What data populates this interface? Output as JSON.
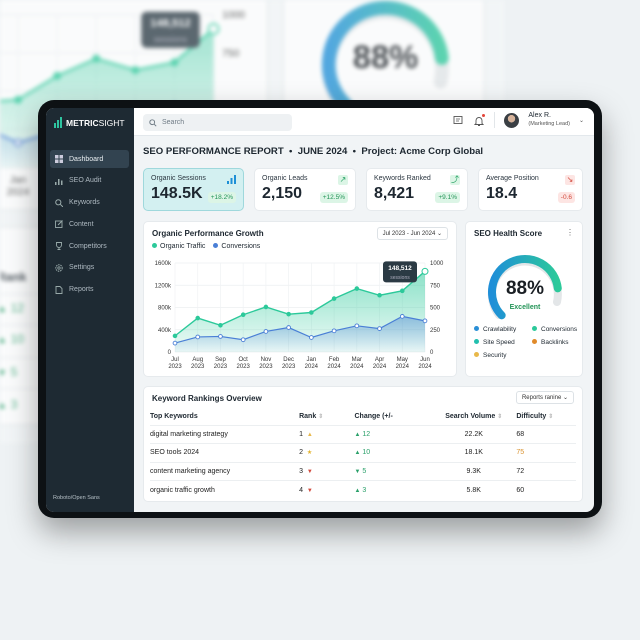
{
  "app": {
    "logo_bold": "METRIC",
    "logo_light": "SIGHT",
    "font_note": "Roboto/Open Sans"
  },
  "sidebar": {
    "items": [
      {
        "label": "Dashboard",
        "icon": "grid-icon",
        "active": true
      },
      {
        "label": "SEO Audit",
        "icon": "bar-chart-icon"
      },
      {
        "label": "Keywords",
        "icon": "search-icon"
      },
      {
        "label": "Content",
        "icon": "edit-icon"
      },
      {
        "label": "Competitors",
        "icon": "trophy-icon"
      },
      {
        "label": "Settings",
        "icon": "gear-icon"
      },
      {
        "label": "Reports",
        "icon": "document-icon"
      }
    ]
  },
  "header": {
    "search_placeholder": "Search",
    "user_name": "Alex R.",
    "user_role": "(Marketing Lead)"
  },
  "page_title": "SEO PERFORMANCE REPORT  •  JUNE 2024  •  Project: Acme Corp Global",
  "kpis": [
    {
      "label": "Organic Sessions",
      "value": "148.5K",
      "change": "+18.2%",
      "trend": "up",
      "icon": "signal-icon"
    },
    {
      "label": "Organic Leads",
      "value": "2,150",
      "change": "+12.5%",
      "trend": "up",
      "icon": "arrow-up-right-icon"
    },
    {
      "label": "Keywords Ranked",
      "value": "8,421",
      "change": "+9.1%",
      "trend": "up",
      "icon": "trend-up-icon"
    },
    {
      "label": "Average Position",
      "value": "18.4",
      "change": "-0.6",
      "trend": "down",
      "icon": "trend-down-icon"
    }
  ],
  "colors": {
    "traffic": "#2cc99a",
    "conversions": "#4a7fd6",
    "accent": "#2ec4a0",
    "negative": "#d24a3d"
  },
  "chart_data": {
    "type": "line",
    "title": "Organic Performance Growth",
    "range_label": "Jul 2023 - Jun 2024",
    "categories": [
      [
        "Jul",
        "2023"
      ],
      [
        "Aug",
        "2023"
      ],
      [
        "Sep",
        "2023"
      ],
      [
        "Oct",
        "2023"
      ],
      [
        "Nov",
        "2023"
      ],
      [
        "Dec",
        "2023"
      ],
      [
        "Jan",
        "2024"
      ],
      [
        "Feb",
        "2024"
      ],
      [
        "Mar",
        "2024"
      ],
      [
        "Apr",
        "2024"
      ],
      [
        "May",
        "2024"
      ],
      [
        "Jun",
        "2024"
      ]
    ],
    "series": [
      {
        "name": "Organic Traffic",
        "axis": "left",
        "values": [
          290000,
          610000,
          480000,
          670000,
          810000,
          680000,
          710000,
          960000,
          1140000,
          1020000,
          1100000,
          1450000
        ]
      },
      {
        "name": "Conversions",
        "axis": "right",
        "values": [
          100,
          169,
          175,
          138,
          231,
          275,
          163,
          238,
          294,
          263,
          400,
          350
        ]
      }
    ],
    "y_left": {
      "ticks": [
        "0",
        "400k",
        "800k",
        "1200k",
        "1600k"
      ],
      "range": [
        0,
        1600000
      ]
    },
    "y_right": {
      "ticks": [
        "0",
        "250",
        "500",
        "750",
        "1000"
      ],
      "range": [
        0,
        1000
      ]
    },
    "tooltip": {
      "value": "148,512",
      "unit": "sessions"
    },
    "grid": true,
    "legend": "top-left"
  },
  "health": {
    "title": "SEO Health Score",
    "score": 88,
    "score_label": "88%",
    "status": "Excellent",
    "legend": [
      {
        "label": "Crawlability",
        "color": "#2a8fd6"
      },
      {
        "label": "Conversions",
        "color": "#2cc99a"
      },
      {
        "label": "Site Speed",
        "color": "#22bfae"
      },
      {
        "label": "Backlinks",
        "color": "#e08a2a"
      },
      {
        "label": "Security",
        "color": "#e8b84a"
      }
    ]
  },
  "keywords": {
    "title": "Keyword Rankings Overview",
    "filter": "Reports ranine",
    "columns": [
      "Top Keywords",
      "Rank",
      "Change (+/-",
      "Search Volume",
      "Difficulty"
    ],
    "rows": [
      {
        "keyword": "digital marketing strategy",
        "rank": "1",
        "rank_icon": "▲",
        "rank_color": "#e8b84a",
        "dir": "up",
        "change": "12",
        "volume": "22.2K",
        "difficulty": "68",
        "diff_color": "#222"
      },
      {
        "keyword": "SEO tools 2024",
        "rank": "2",
        "rank_icon": "★",
        "rank_color": "#e3b32e",
        "dir": "up",
        "change": "10",
        "volume": "18.1K",
        "difficulty": "75",
        "diff_color": "#d9922e"
      },
      {
        "keyword": "content marketing agency",
        "rank": "3",
        "rank_icon": "▼",
        "rank_color": "#d24a3d",
        "dir": "down",
        "change": "5",
        "volume": "9.3K",
        "difficulty": "72",
        "diff_color": "#222"
      },
      {
        "keyword": "organic traffic growth",
        "rank": "4",
        "rank_icon": "▼",
        "rank_color": "#d24a3d",
        "dir": "up",
        "change": "3",
        "volume": "5.8K",
        "difficulty": "60",
        "diff_color": "#222"
      }
    ]
  }
}
